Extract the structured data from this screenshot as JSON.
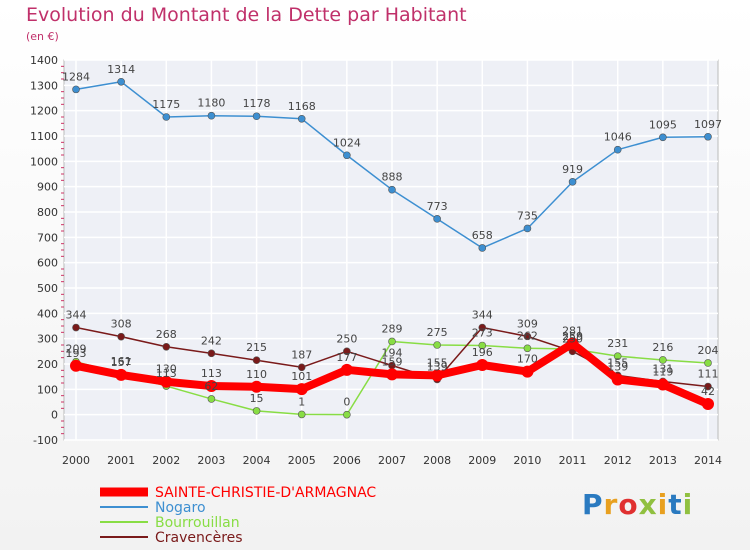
{
  "chart_data": {
    "type": "line",
    "title": "Evolution du Montant de la Dette par Habitant",
    "unit": "(en €)",
    "x": [
      "2000",
      "2001",
      "2002",
      "2003",
      "2004",
      "2005",
      "2006",
      "2007",
      "2008",
      "2009",
      "2010",
      "2011",
      "2012",
      "2013",
      "2014"
    ],
    "ylim": [
      -100,
      1400
    ],
    "yticks": [
      -100,
      0,
      100,
      200,
      300,
      400,
      500,
      600,
      700,
      800,
      900,
      1000,
      1100,
      1200,
      1300,
      1400
    ],
    "grid": true,
    "legend_position": "bottom-left",
    "series": [
      {
        "name": "SAINTE-CHRISTIE-D'ARMAGNAC",
        "color": "#ff0000",
        "values": [
          193,
          157,
          130,
          113,
          110,
          101,
          177,
          159,
          155,
          196,
          170,
          281,
          139,
          119,
          42
        ]
      },
      {
        "name": "Nogaro",
        "color": "#3d8fd1",
        "values": [
          1284,
          1314,
          1175,
          1180,
          1178,
          1168,
          1024,
          888,
          773,
          658,
          735,
          919,
          1046,
          1095,
          1097
        ]
      },
      {
        "name": "Bourrouillan",
        "color": "#88dd44",
        "values": [
          209,
          161,
          113,
          62,
          15,
          1,
          0,
          289,
          275,
          273,
          262,
          259,
          231,
          216,
          204
        ]
      },
      {
        "name": "Cravencères",
        "color": "#7a1a1a",
        "values": [
          344,
          308,
          268,
          242,
          215,
          187,
          250,
          194,
          139,
          344,
          309,
          250,
          155,
          131,
          111
        ]
      }
    ]
  },
  "logo": {
    "text": "Proxiti",
    "colors": [
      "#2a7ac0",
      "#e8a020",
      "#e03030",
      "#90c040",
      "#e8a020",
      "#2a7ac0",
      "#90c040"
    ]
  }
}
